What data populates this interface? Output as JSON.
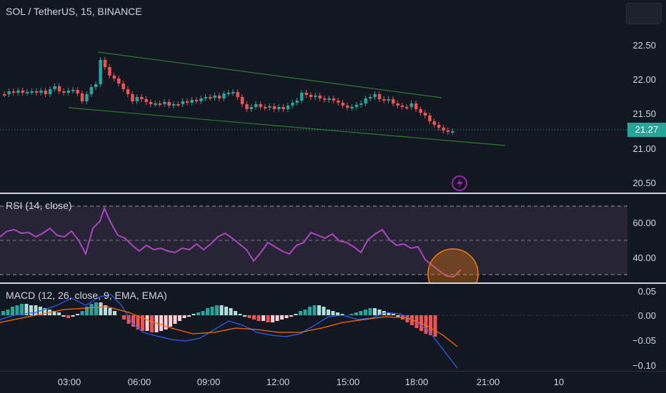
{
  "header": {
    "symbol_title": "SOL / TetherUS, 15, BINANCE"
  },
  "price_axis": [
    "22.50",
    "22.00",
    "21.50",
    "21.00",
    "20.50"
  ],
  "current_price": "21.27",
  "rsi": {
    "legend": "RSI (14, close)",
    "axis": [
      "60.00",
      "40.00"
    ]
  },
  "macd": {
    "legend": "MACD (12, 26, close, 9, EMA, EMA)",
    "axis": [
      "0.05",
      "0.00",
      "−0.05",
      "−0.10"
    ]
  },
  "time_axis": [
    "03:00",
    "06:00",
    "09:00",
    "12:00",
    "15:00",
    "18:00",
    "21:00",
    "10"
  ],
  "colors": {
    "up": "#26a69a",
    "down": "#ef5350",
    "rsi_line": "#ab47bc",
    "channel": "#2e7d32",
    "macd_line": "#2962ff",
    "signal_line": "#ff6d00",
    "highlight": "#f57c00"
  },
  "icons": {
    "alert": "lightning-icon",
    "corner": "settings-button"
  }
}
